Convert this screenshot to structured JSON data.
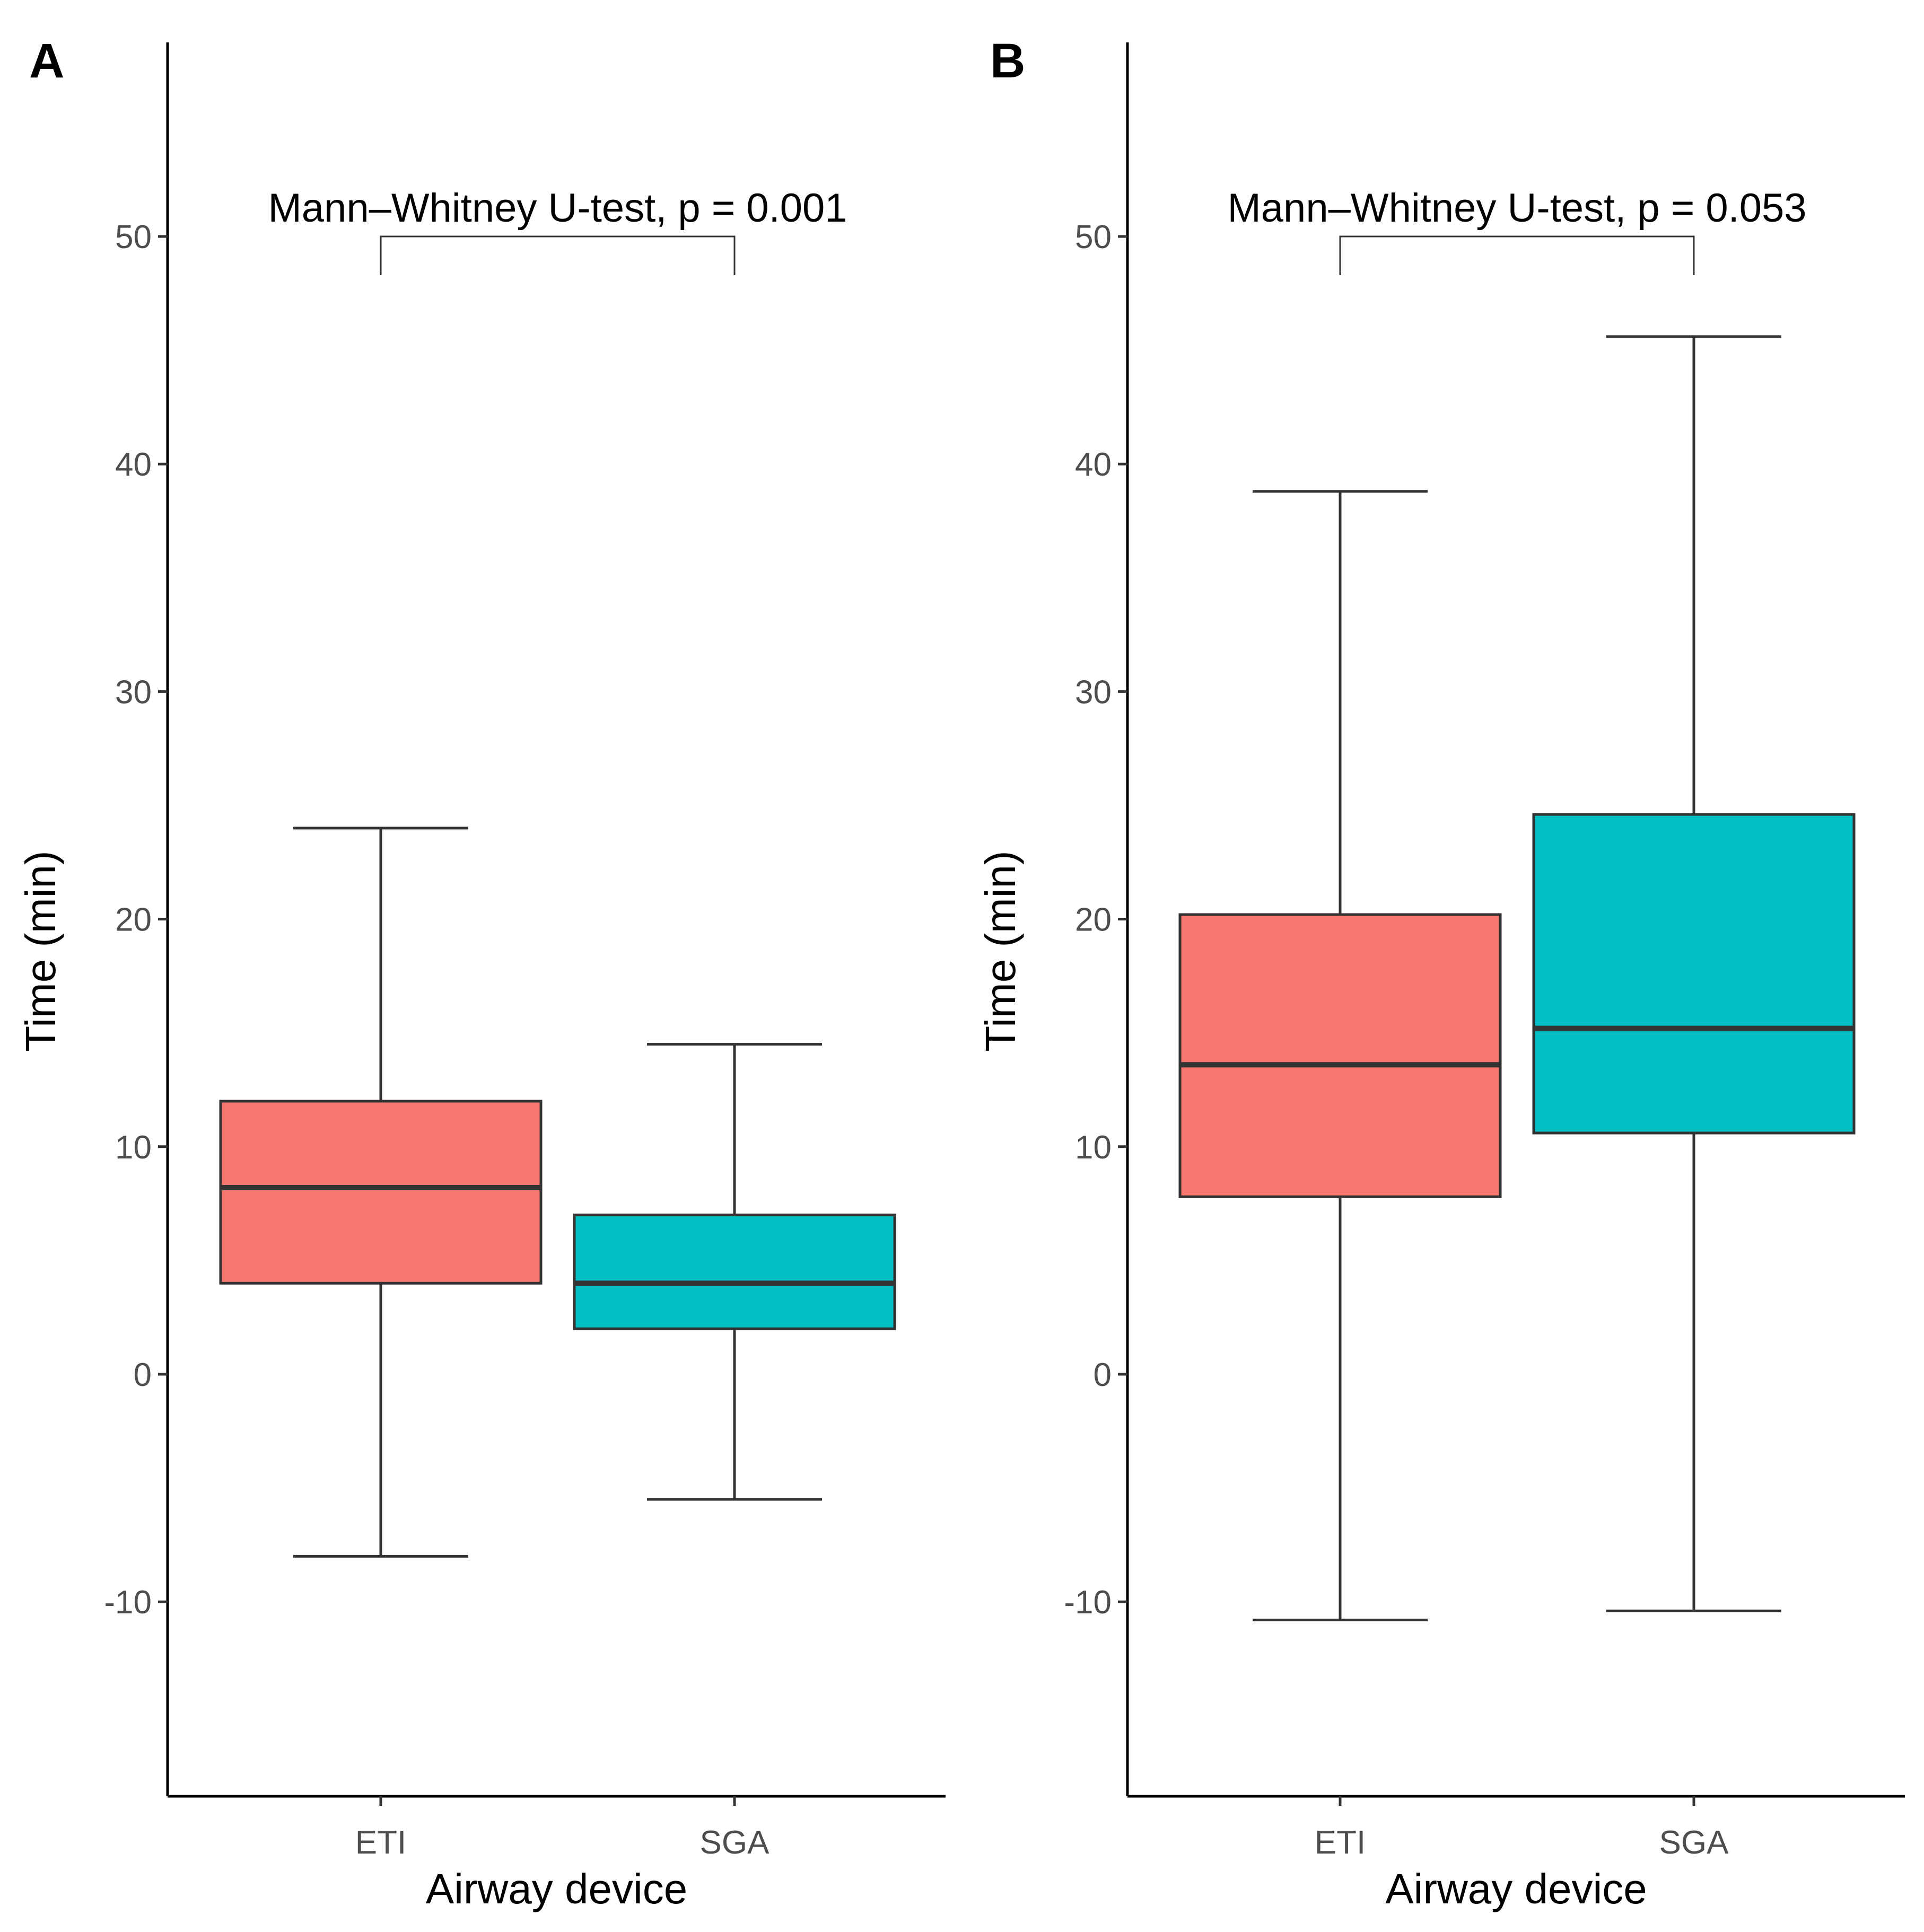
{
  "colors": {
    "ETI": "#F8766D",
    "SGA": "#00BFC4"
  },
  "chart_data": [
    {
      "panel": "A",
      "type": "box",
      "xlabel": "Airway device",
      "ylabel": "Time (min)",
      "ylim": [
        -17.5,
        58
      ],
      "yticks": [
        -10,
        0,
        10,
        20,
        30,
        40,
        50
      ],
      "categories": [
        "ETI",
        "SGA"
      ],
      "boxes": [
        {
          "category": "ETI",
          "whisker_low": -8,
          "q1": 4,
          "median": 8.2,
          "q3": 12,
          "whisker_high": 24
        },
        {
          "category": "SGA",
          "whisker_low": -5.5,
          "q1": 2,
          "median": 4,
          "q3": 7,
          "whisker_high": 14.5
        }
      ],
      "annotation": {
        "text": "Mann–Whitney U-test, p = 0.001",
        "bracket_y": 50,
        "bracket_drop_to": 48.3,
        "between": [
          "ETI",
          "SGA"
        ]
      }
    },
    {
      "panel": "B",
      "type": "box",
      "xlabel": "Airway device",
      "ylabel": "Time (min)",
      "ylim": [
        -17.5,
        58
      ],
      "yticks": [
        -10,
        0,
        10,
        20,
        30,
        40,
        50
      ],
      "categories": [
        "ETI",
        "SGA"
      ],
      "boxes": [
        {
          "category": "ETI",
          "whisker_low": -10.8,
          "q1": 7.8,
          "median": 13.6,
          "q3": 20.2,
          "whisker_high": 38.8
        },
        {
          "category": "SGA",
          "whisker_low": -10.4,
          "q1": 10.6,
          "median": 15.2,
          "q3": 24.6,
          "whisker_high": 45.6
        }
      ],
      "annotation": {
        "text": "Mann–Whitney U-test, p = 0.053",
        "bracket_y": 50,
        "bracket_drop_to": 48.3,
        "between": [
          "ETI",
          "SGA"
        ]
      }
    }
  ]
}
